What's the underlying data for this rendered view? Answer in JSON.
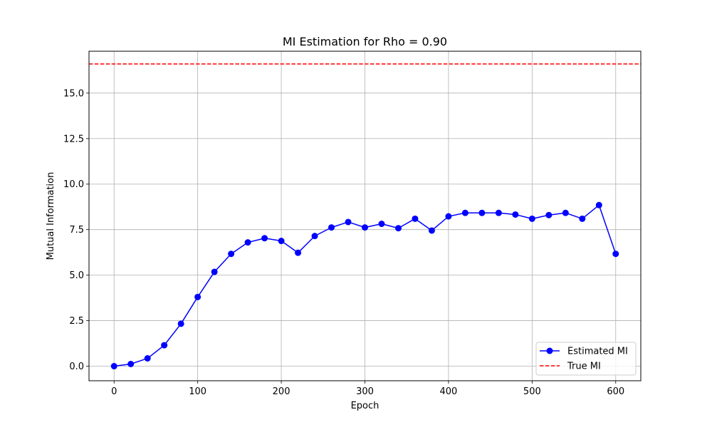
{
  "chart_data": {
    "type": "line",
    "title": "MI Estimation for Rho = 0.90",
    "xlabel": "Epoch",
    "ylabel": "Mutual Information",
    "xlim": [
      -30,
      630
    ],
    "ylim": [
      -0.8,
      17.3
    ],
    "xticks": [
      0,
      100,
      200,
      300,
      400,
      500,
      600
    ],
    "yticks": [
      0.0,
      2.5,
      5.0,
      7.5,
      10.0,
      12.5,
      15.0
    ],
    "xtick_labels": [
      "0",
      "100",
      "200",
      "300",
      "400",
      "500",
      "600"
    ],
    "ytick_labels": [
      "0.0",
      "2.5",
      "5.0",
      "7.5",
      "10.0",
      "12.5",
      "15.0"
    ],
    "grid": true,
    "legend_position": "lower-right",
    "series": [
      {
        "name": "Estimated MI",
        "color": "#0000ff",
        "style": "solid",
        "marker": "circle",
        "x": [
          0,
          20,
          40,
          60,
          80,
          100,
          120,
          140,
          160,
          180,
          200,
          220,
          240,
          260,
          280,
          300,
          320,
          340,
          360,
          380,
          400,
          420,
          440,
          460,
          480,
          500,
          520,
          540,
          560,
          580,
          600
        ],
        "y": [
          0.0,
          0.12,
          0.43,
          1.15,
          2.33,
          3.8,
          5.18,
          6.17,
          6.8,
          7.03,
          6.88,
          6.23,
          7.15,
          7.62,
          7.92,
          7.62,
          7.82,
          7.58,
          8.1,
          7.45,
          8.23,
          8.42,
          8.42,
          8.42,
          8.33,
          8.1,
          8.3,
          8.42,
          8.1,
          8.85,
          6.17
        ]
      },
      {
        "name": "True MI",
        "color": "#ff0000",
        "style": "dashed",
        "constant_y": 16.6
      }
    ]
  }
}
